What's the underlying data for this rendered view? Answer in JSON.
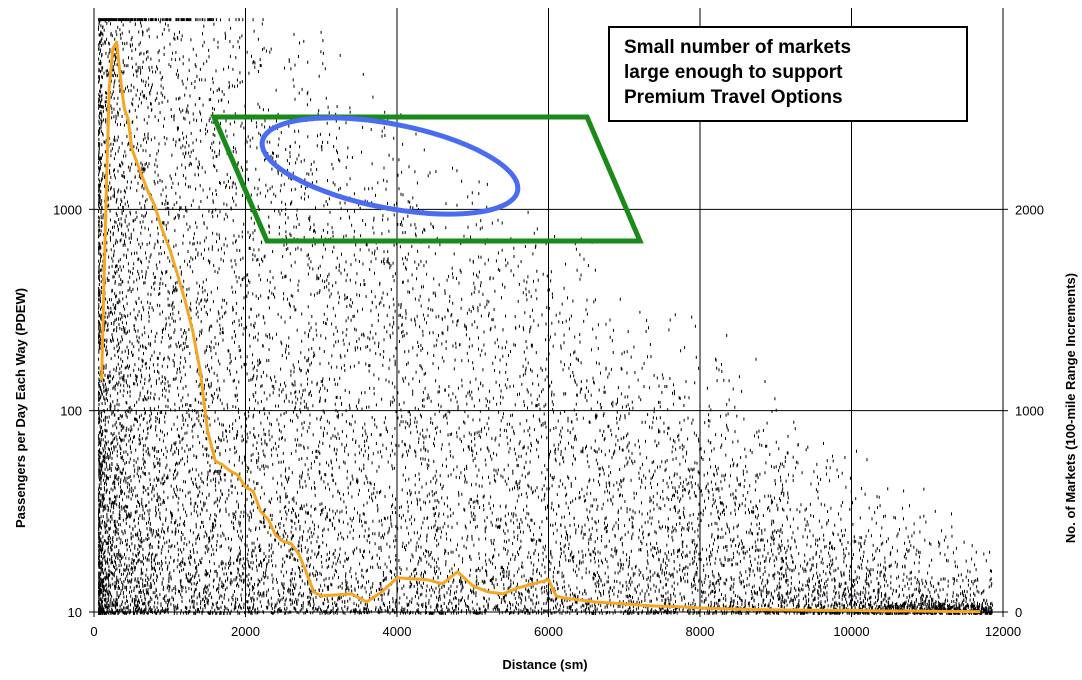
{
  "chart_data": {
    "type": "scatter",
    "title": "",
    "xlabel": "Distance (sm)",
    "ylabel_left": "Passengers per Day Each Way (PDEW)",
    "ylabel_right": "No. of Markets (100-mile Range Increments)",
    "x_axis": {
      "min": 0,
      "max": 12000,
      "ticks": [
        "0",
        "2000",
        "4000",
        "6000",
        "8000",
        "10000",
        "12000"
      ]
    },
    "y_left_axis": {
      "scale": "log",
      "min": 10,
      "max": 10000,
      "ticks": [
        "10",
        "100",
        "1000"
      ]
    },
    "y_right_axis": {
      "scale": "linear",
      "min": 0,
      "max": 3000,
      "ticks": [
        "0",
        "1000",
        "2000"
      ]
    },
    "grid": true,
    "scatter_series": {
      "description_color": "#000000",
      "approx_point_count": 30000
    },
    "line_series": {
      "color": "#f5a623",
      "axis": "right",
      "x": [
        100,
        130,
        170,
        200,
        250,
        300,
        350,
        400,
        450,
        500,
        550,
        600,
        700,
        800,
        900,
        1000,
        1100,
        1200,
        1300,
        1400,
        1500,
        1600,
        1700,
        1800,
        1900,
        2000,
        2100,
        2200,
        2300,
        2400,
        2500,
        2600,
        2700,
        2800,
        2900,
        3000,
        3200,
        3400,
        3600,
        3800,
        4000,
        4200,
        4400,
        4600,
        4800,
        5000,
        5200,
        5400,
        5600,
        5800,
        6000,
        6100,
        6200,
        6400,
        6600,
        6800,
        7000,
        7200,
        7400,
        7600,
        7800,
        8000,
        8400,
        8800,
        9200,
        9600,
        10000,
        10400,
        10800,
        11200,
        11700
      ],
      "y": [
        1150,
        1600,
        2200,
        2600,
        2800,
        2830,
        2650,
        2500,
        2450,
        2300,
        2250,
        2200,
        2100,
        2020,
        1900,
        1800,
        1680,
        1550,
        1400,
        1200,
        900,
        750,
        730,
        700,
        680,
        620,
        600,
        500,
        460,
        380,
        350,
        340,
        290,
        200,
        100,
        80,
        85,
        90,
        50,
        100,
        170,
        165,
        160,
        140,
        200,
        130,
        100,
        90,
        120,
        140,
        160,
        80,
        70,
        60,
        50,
        45,
        40,
        35,
        30,
        28,
        25,
        20,
        15,
        12,
        10,
        8,
        8,
        5,
        5,
        3,
        2
      ]
    },
    "shapes": [
      {
        "type": "parallelogram",
        "color": "#1a8a1a",
        "region": "distance 1600-7200 sm, PDEW approx 650-2700"
      },
      {
        "type": "ellipse",
        "color": "#4a6cf0",
        "region": "distance 2200-5800 sm, PDEW approx 900-2300"
      }
    ]
  },
  "callout": {
    "lines": [
      "Small number of markets",
      "large enough to support",
      "Premium Travel Options"
    ]
  }
}
